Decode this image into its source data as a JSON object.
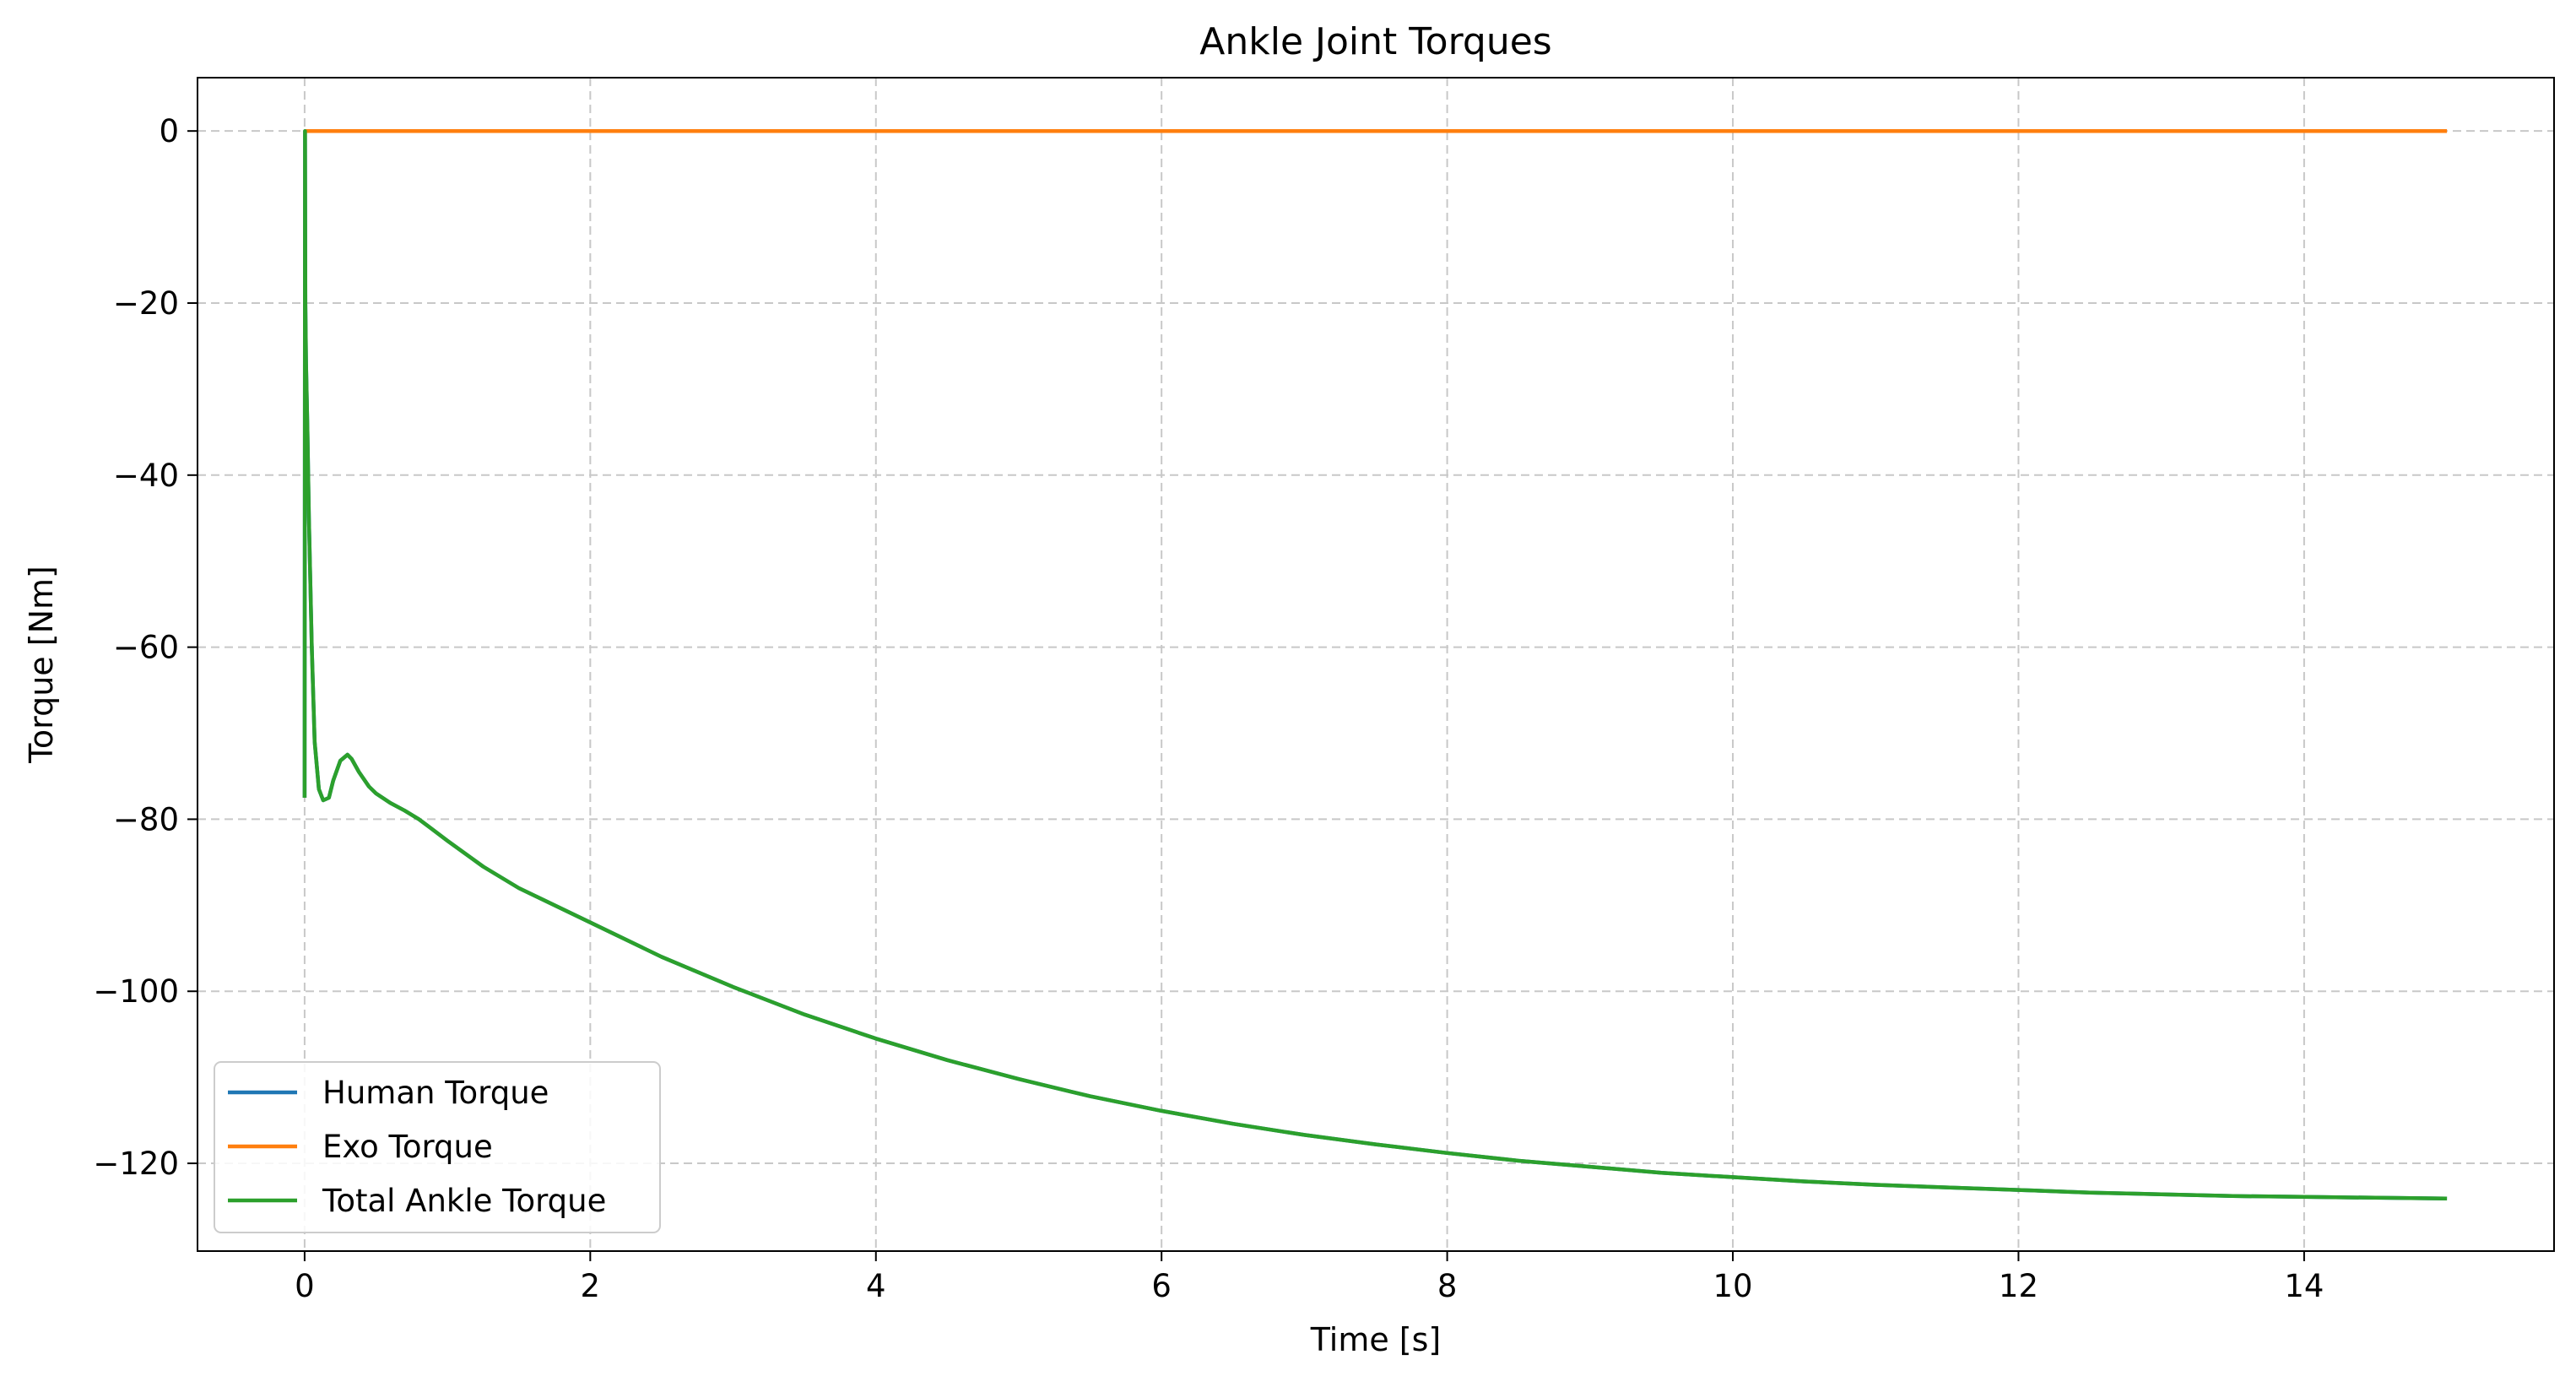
{
  "chart_data": {
    "type": "line",
    "title": "Ankle Joint Torques",
    "xlabel": "Time [s]",
    "ylabel": "Torque [Nm]",
    "xlim": [
      -0.75,
      15.75
    ],
    "ylim": [
      -130.2,
      6.2
    ],
    "xticks": [
      0,
      2,
      4,
      6,
      8,
      10,
      12,
      14
    ],
    "xtick_labels": [
      "0",
      "2",
      "4",
      "6",
      "8",
      "10",
      "12",
      "14"
    ],
    "yticks": [
      0,
      -20,
      -40,
      -60,
      -80,
      -100,
      -120
    ],
    "ytick_labels": [
      "0",
      "−20",
      "−40",
      "−60",
      "−80",
      "−100",
      "−120"
    ],
    "grid": true,
    "legend_position": "lower-left",
    "series": [
      {
        "name": "Human Torque",
        "color": "#1f77b4",
        "x": [
          0,
          0.003,
          0.005,
          0.01,
          0.02,
          0.03,
          0.05,
          0.07,
          0.1,
          0.13,
          0.17,
          0.2,
          0.25,
          0.3,
          0.33,
          0.38,
          0.45,
          0.5,
          0.6,
          0.7,
          0.8,
          1,
          1.25,
          1.5,
          2,
          2.5,
          3,
          3.5,
          4,
          4.5,
          5,
          5.5,
          6,
          6.5,
          7,
          7.5,
          8,
          8.5,
          9,
          9.5,
          10,
          10.5,
          11,
          11.5,
          12,
          12.5,
          13,
          13.5,
          14,
          14.5,
          15
        ],
        "y": [
          -77.5,
          0,
          -20,
          -27,
          -35,
          -45,
          -60,
          -71,
          -76.5,
          -77.8,
          -77.5,
          -75.5,
          -73.2,
          -72.5,
          -73,
          -74.5,
          -76.2,
          -77,
          -78.1,
          -79,
          -80,
          -82.5,
          -85.5,
          -88,
          -92,
          -96,
          -99.5,
          -102.7,
          -105.5,
          -108,
          -110.2,
          -112.2,
          -113.9,
          -115.4,
          -116.7,
          -117.8,
          -118.8,
          -119.7,
          -120.4,
          -121.1,
          -121.6,
          -122.1,
          -122.5,
          -122.8,
          -123.1,
          -123.4,
          -123.6,
          -123.8,
          -123.9,
          -124.0,
          -124.1
        ]
      },
      {
        "name": "Exo Torque",
        "color": "#ff7f0e",
        "x": [
          0,
          15
        ],
        "y": [
          0,
          0
        ]
      },
      {
        "name": "Total Ankle Torque",
        "color": "#2ca02c",
        "x": [
          0,
          0.003,
          0.005,
          0.01,
          0.02,
          0.03,
          0.05,
          0.07,
          0.1,
          0.13,
          0.17,
          0.2,
          0.25,
          0.3,
          0.33,
          0.38,
          0.45,
          0.5,
          0.6,
          0.7,
          0.8,
          1,
          1.25,
          1.5,
          2,
          2.5,
          3,
          3.5,
          4,
          4.5,
          5,
          5.5,
          6,
          6.5,
          7,
          7.5,
          8,
          8.5,
          9,
          9.5,
          10,
          10.5,
          11,
          11.5,
          12,
          12.5,
          13,
          13.5,
          14,
          14.5,
          15
        ],
        "y": [
          -77.5,
          0,
          -20,
          -27,
          -35,
          -45,
          -60,
          -71,
          -76.5,
          -77.8,
          -77.5,
          -75.5,
          -73.2,
          -72.5,
          -73,
          -74.5,
          -76.2,
          -77,
          -78.1,
          -79,
          -80,
          -82.5,
          -85.5,
          -88,
          -92,
          -96,
          -99.5,
          -102.7,
          -105.5,
          -108,
          -110.2,
          -112.2,
          -113.9,
          -115.4,
          -116.7,
          -117.8,
          -118.8,
          -119.7,
          -120.4,
          -121.1,
          -121.6,
          -122.1,
          -122.5,
          -122.8,
          -123.1,
          -123.4,
          -123.6,
          -123.8,
          -123.9,
          -124.0,
          -124.1
        ]
      }
    ]
  }
}
